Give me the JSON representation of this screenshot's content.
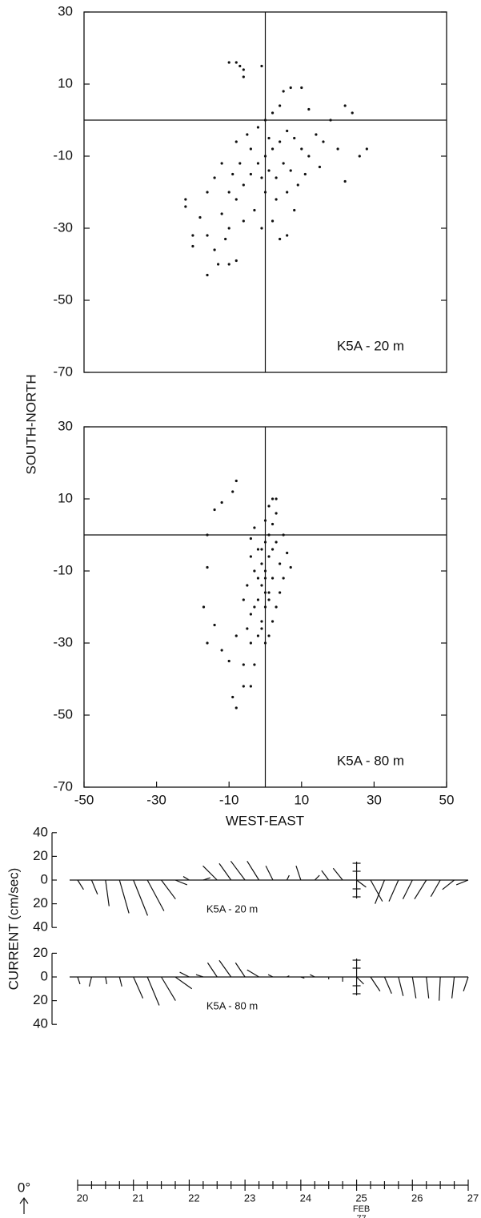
{
  "chart_data": [
    {
      "type": "scatter",
      "annotation": "K5A - 20 m",
      "color": "#111111",
      "zero_lines": true,
      "xlim": [
        -50,
        50
      ],
      "ylim": [
        -70,
        30
      ],
      "yticks": [
        30,
        10,
        -10,
        -30,
        -50,
        -70
      ],
      "x": [
        -10,
        -8,
        -7,
        -6,
        -6,
        -1,
        -22,
        -22,
        -20,
        -20,
        -18,
        -16,
        -14,
        -13,
        -10,
        -8,
        -16,
        -12,
        -10,
        -8,
        -6,
        -4,
        -2,
        0,
        2,
        4,
        6,
        8,
        10,
        12,
        14,
        16,
        18,
        20,
        22,
        24,
        26,
        28,
        22,
        -3,
        -1,
        2,
        4,
        6,
        -8,
        -5,
        -12,
        -14,
        -10,
        -6,
        0,
        3,
        5,
        7,
        9,
        1,
        0,
        2,
        4,
        5,
        7,
        10,
        12,
        -2,
        3,
        -4,
        -7,
        -9,
        -11,
        -16,
        1,
        -1,
        6,
        8,
        15,
        11
      ],
      "y": [
        16,
        16,
        15,
        12,
        14,
        15,
        -22,
        -24,
        -32,
        -35,
        -27,
        -43,
        -36,
        -40,
        -40,
        -39,
        -20,
        -26,
        -30,
        -22,
        -18,
        -15,
        -12,
        -10,
        -8,
        -6,
        -3,
        -5,
        -8,
        -10,
        -4,
        -6,
        0,
        -8,
        4,
        2,
        -10,
        -8,
        -17,
        -25,
        -30,
        -28,
        -33,
        -32,
        -6,
        -4,
        -12,
        -16,
        -20,
        -28,
        -20,
        -16,
        -12,
        -14,
        -18,
        -5,
        0,
        2,
        4,
        8,
        9,
        9,
        3,
        -2,
        -22,
        -8,
        -12,
        -15,
        -33,
        -32,
        -14,
        -16,
        -20,
        -25,
        -13,
        -15
      ]
    },
    {
      "type": "scatter",
      "annotation": "K5A - 80 m",
      "color": "#111111",
      "zero_lines": true,
      "xlabel": "WEST-EAST",
      "ylabel": "SOUTH-NORTH",
      "xlim": [
        -50,
        50
      ],
      "ylim": [
        -70,
        30
      ],
      "xticks": [
        -50,
        -30,
        -10,
        10,
        30,
        50
      ],
      "yticks": [
        30,
        10,
        -10,
        -30,
        -50,
        -70
      ],
      "x": [
        -8,
        -9,
        -12,
        -14,
        -16,
        -16,
        -17,
        -16,
        -14,
        -12,
        -10,
        -8,
        -9,
        -8,
        -6,
        -4,
        -6,
        -3,
        -4,
        -2,
        -1,
        0,
        1,
        2,
        0,
        -1,
        1,
        2,
        0,
        1,
        2,
        3,
        2,
        3,
        -1,
        -2,
        -3,
        -2,
        -3,
        -4,
        -2,
        4,
        5,
        4,
        3,
        2,
        -1,
        6,
        7,
        -5,
        -6,
        -4,
        0,
        1,
        -5,
        3,
        -3,
        0,
        1,
        5,
        -4,
        0,
        0,
        -1,
        1
      ],
      "y": [
        15,
        12,
        9,
        7,
        0,
        -9,
        -20,
        -30,
        -25,
        -32,
        -35,
        -28,
        -45,
        -48,
        -42,
        -42,
        -36,
        -36,
        -30,
        -28,
        -24,
        -20,
        -16,
        -12,
        -10,
        -8,
        -6,
        -4,
        -2,
        0,
        3,
        6,
        10,
        10,
        -14,
        -18,
        -20,
        -12,
        -10,
        -6,
        -4,
        -8,
        -12,
        -16,
        -20,
        -24,
        -26,
        -5,
        -9,
        -14,
        -18,
        -22,
        -30,
        -28,
        -26,
        -2,
        2,
        4,
        8,
        0,
        -1,
        -16,
        -12,
        -4,
        -18
      ]
    },
    {
      "type": "stick",
      "ylabel": "CURRENT (cm/sec)",
      "date_label": "FEB",
      "year_label": "77",
      "direction_label": "0°",
      "xlim": [
        20,
        27
      ],
      "xticks": [
        20,
        21,
        22,
        23,
        24,
        25,
        26,
        27
      ],
      "xminorticks": [
        20.25,
        20.5,
        20.75,
        21.25,
        21.5,
        21.75,
        22.25,
        22.5,
        22.75,
        23.25,
        23.5,
        23.75,
        24.25,
        24.5,
        24.75,
        25.25,
        25.5,
        25.75,
        26.25,
        26.5,
        26.75
      ],
      "x": [
        20,
        20.25,
        20.5,
        20.75,
        21,
        21.25,
        21.5,
        21.75,
        22,
        22.25,
        22.5,
        22.75,
        23,
        23.25,
        23.5,
        23.75,
        24,
        24.25,
        24.5,
        24.75,
        25,
        25.25,
        25.5,
        25.75,
        26,
        26.25,
        26.5,
        26.75,
        27
      ],
      "series": [
        {
          "name": "K5A - 20 m",
          "ylim": [
            -40,
            40
          ],
          "yticks": [
            40,
            20,
            0,
            {
              "value": -20,
              "label": "20"
            },
            {
              "value": -40,
              "label": "40"
            }
          ],
          "u": [
            5,
            5,
            3,
            8,
            12,
            14,
            12,
            10,
            -5,
            6,
            -12,
            -10,
            -12,
            -10,
            -6,
            2,
            -4,
            4,
            -6,
            -8,
            8,
            10,
            -8,
            -8,
            -8,
            -10,
            -8,
            -10,
            -10
          ],
          "v": [
            -8,
            -12,
            -22,
            -28,
            -30,
            -26,
            -16,
            -4,
            3,
            2,
            12,
            14,
            16,
            16,
            12,
            4,
            12,
            4,
            8,
            10,
            -6,
            -18,
            -20,
            -18,
            -16,
            -16,
            -14,
            -8,
            -4
          ]
        },
        {
          "name": "K5A - 80 m",
          "ylim": [
            -40,
            20
          ],
          "yticks": [
            20,
            0,
            {
              "value": -20,
              "label": "20"
            },
            {
              "value": -40,
              "label": "40"
            }
          ],
          "u": [
            2,
            -2,
            1,
            2,
            8,
            10,
            12,
            14,
            -8,
            -6,
            -8,
            -10,
            -8,
            -10,
            -4,
            2,
            3,
            -4,
            0,
            0,
            6,
            8,
            6,
            4,
            3,
            2,
            -1,
            -2,
            -4
          ],
          "v": [
            -6,
            -8,
            -6,
            -8,
            -18,
            -24,
            -20,
            -10,
            4,
            2,
            12,
            14,
            12,
            6,
            2,
            1,
            -1,
            2,
            -2,
            -4,
            -6,
            -12,
            -14,
            -16,
            -18,
            -18,
            -20,
            -18,
            -12
          ]
        }
      ]
    }
  ]
}
